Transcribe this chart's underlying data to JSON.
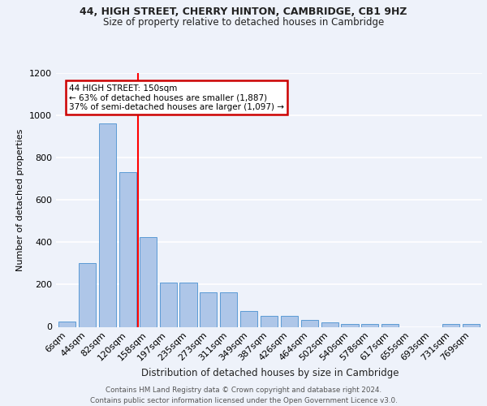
{
  "title1": "44, HIGH STREET, CHERRY HINTON, CAMBRIDGE, CB1 9HZ",
  "title2": "Size of property relative to detached houses in Cambridge",
  "xlabel": "Distribution of detached houses by size in Cambridge",
  "ylabel": "Number of detached properties",
  "categories": [
    "6sqm",
    "44sqm",
    "82sqm",
    "120sqm",
    "158sqm",
    "197sqm",
    "235sqm",
    "273sqm",
    "311sqm",
    "349sqm",
    "387sqm",
    "426sqm",
    "464sqm",
    "502sqm",
    "540sqm",
    "578sqm",
    "617sqm",
    "655sqm",
    "693sqm",
    "731sqm",
    "769sqm"
  ],
  "values": [
    25,
    300,
    960,
    730,
    425,
    210,
    210,
    165,
    165,
    75,
    50,
    50,
    32,
    20,
    15,
    15,
    15,
    0,
    0,
    15,
    15
  ],
  "bar_color": "#aec6e8",
  "bar_edgecolor": "#5b9bd5",
  "red_line_x": 3.5,
  "annotation_line1": "44 HIGH STREET: 150sqm",
  "annotation_line2": "← 63% of detached houses are smaller (1,887)",
  "annotation_line3": "37% of semi-detached houses are larger (1,097) →",
  "annotation_box_edgecolor": "#cc0000",
  "footer1": "Contains HM Land Registry data © Crown copyright and database right 2024.",
  "footer2": "Contains public sector information licensed under the Open Government Licence v3.0.",
  "ylim": [
    0,
    1200
  ],
  "yticks": [
    0,
    200,
    400,
    600,
    800,
    1000,
    1200
  ],
  "bg_color": "#eef2fa",
  "grid_color": "#ffffff"
}
